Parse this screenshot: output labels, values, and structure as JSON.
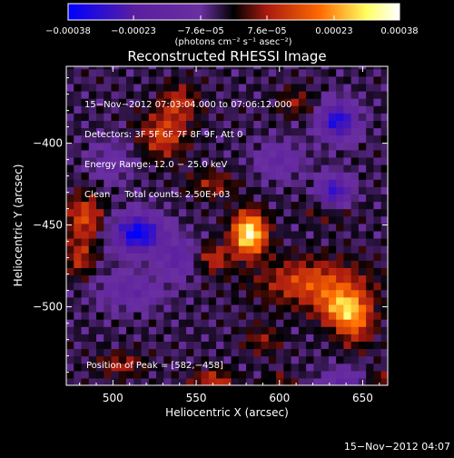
{
  "chart_data": {
    "type": "heatmap",
    "title": "Reconstructed RHESSI Image",
    "xlabel": "Heliocentric X (arcsec)",
    "ylabel": "Heliocentric Y (arcsec)",
    "xlim": [
      472,
      665
    ],
    "ylim": [
      -548,
      -353
    ],
    "xticks": [
      500,
      550,
      600,
      650
    ],
    "yticks": [
      -400,
      -450,
      -500
    ],
    "x_tick_labels": [
      "500",
      "550",
      "600",
      "650"
    ],
    "y_tick_labels": [
      "−400",
      "−450",
      "−500"
    ],
    "colorbar": {
      "min": -0.00038,
      "max": 0.00038,
      "ticks": [
        -0.00038,
        -0.00023,
        -7.6e-05,
        7.6e-05,
        0.00023,
        0.00038
      ],
      "tick_labels": [
        "−0.00038",
        "−0.00023",
        "−7.6e−05",
        "7.6e−05",
        "0.00023",
        "0.00038"
      ],
      "unit_label": "(photons cm⁻² s⁻¹ asec⁻²)",
      "colors": [
        "#0000ff",
        "#5a1ea0",
        "#6a2fa0",
        "#000000",
        "#aa1a10",
        "#ff6a00",
        "#ffff60",
        "#ffffff"
      ]
    },
    "peak": {
      "x": 582,
      "y": -458
    },
    "blobs": [
      {
        "x": 582,
        "y": -455,
        "amp": 0.00038,
        "sx": 7,
        "sy": 9
      },
      {
        "x": 620,
        "y": -485,
        "amp": 0.00018,
        "sx": 22,
        "sy": 10
      },
      {
        "x": 638,
        "y": -500,
        "amp": 0.00022,
        "sx": 10,
        "sy": 8
      },
      {
        "x": 645,
        "y": -510,
        "amp": 0.00016,
        "sx": 8,
        "sy": 10
      },
      {
        "x": 560,
        "y": -470,
        "amp": 0.00014,
        "sx": 8,
        "sy": 6
      },
      {
        "x": 530,
        "y": -395,
        "amp": 0.00016,
        "sx": 10,
        "sy": 10
      },
      {
        "x": 540,
        "y": -375,
        "amp": 0.00013,
        "sx": 8,
        "sy": 8
      },
      {
        "x": 483,
        "y": -445,
        "amp": 0.00017,
        "sx": 8,
        "sy": 10
      },
      {
        "x": 480,
        "y": -470,
        "amp": 0.00013,
        "sx": 6,
        "sy": 8
      },
      {
        "x": 560,
        "y": -545,
        "amp": 0.00014,
        "sx": 9,
        "sy": 5
      },
      {
        "x": 505,
        "y": -535,
        "amp": 0.00011,
        "sx": 10,
        "sy": 5
      },
      {
        "x": 560,
        "y": -425,
        "amp": 0.0001,
        "sx": 10,
        "sy": 6
      },
      {
        "x": 610,
        "y": -375,
        "amp": 9e-05,
        "sx": 8,
        "sy": 6
      },
      {
        "x": 630,
        "y": -440,
        "amp": 9e-05,
        "sx": 10,
        "sy": 6
      },
      {
        "x": 590,
        "y": -520,
        "amp": 9e-05,
        "sx": 8,
        "sy": 6
      },
      {
        "x": 660,
        "y": -545,
        "amp": 0.0001,
        "sx": 6,
        "sy": 5
      },
      {
        "x": 600,
        "y": -545,
        "amp": 8e-05,
        "sx": 6,
        "sy": 4
      },
      {
        "x": 515,
        "y": -455,
        "amp": -0.00036,
        "sx": 10,
        "sy": 8
      },
      {
        "x": 635,
        "y": -386,
        "amp": -0.0003,
        "sx": 8,
        "sy": 8
      },
      {
        "x": 633,
        "y": -430,
        "amp": -0.00028,
        "sx": 7,
        "sy": 7
      },
      {
        "x": 540,
        "y": -470,
        "amp": -0.00016,
        "sx": 8,
        "sy": 8
      },
      {
        "x": 600,
        "y": -410,
        "amp": -0.00012,
        "sx": 10,
        "sy": 8
      },
      {
        "x": 510,
        "y": -490,
        "amp": -0.00012,
        "sx": 14,
        "sy": 8
      },
      {
        "x": 640,
        "y": -545,
        "amp": -0.00012,
        "sx": 10,
        "sy": 6
      },
      {
        "x": 500,
        "y": -410,
        "amp": -8e-05,
        "sx": 10,
        "sy": 10
      }
    ]
  },
  "overlay": {
    "line1": "15−Nov−2012 07:03:04.000 to 07:06:12.000",
    "line2": "Detectors: 3F 5F 6F 7F 8F 9F, Att 0",
    "line3": "Energy Range: 12.0 − 25.0 keV",
    "line4": "Clean     Total counts: 2.50E+03",
    "peak": "Position of Peak = [582,−458]"
  },
  "footer": {
    "timestamp": "15−Nov−2012 04:07"
  }
}
